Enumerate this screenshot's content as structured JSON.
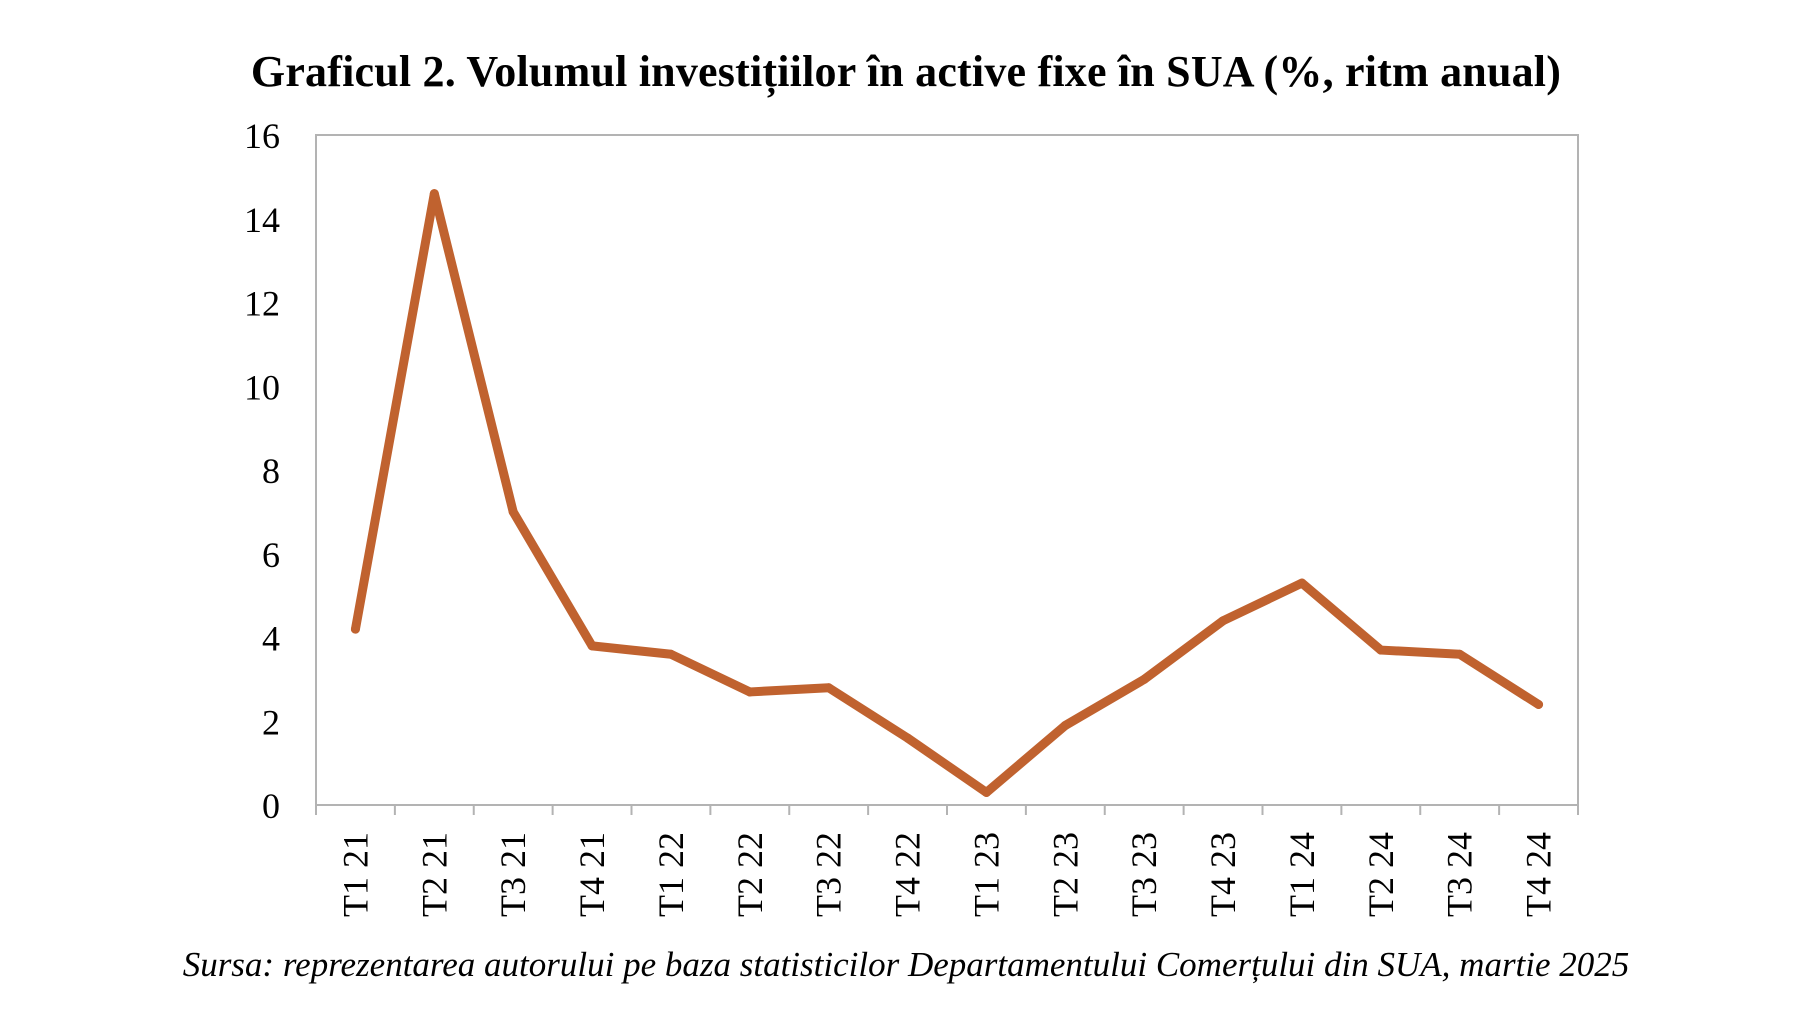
{
  "chart_data": {
    "type": "line",
    "title": "Graficul 2. Volumul investițiilor în active fixe în SUA (%, ritm anual)",
    "xlabel": "",
    "ylabel": "",
    "categories": [
      "T1 21",
      "T2 21",
      "T3 21",
      "T4 21",
      "T1 22",
      "T2 22",
      "T3 22",
      "T4 22",
      "T1 23",
      "T2 23",
      "T3 23",
      "T4 23",
      "T1 24",
      "T2 24",
      "T3 24",
      "T4 24"
    ],
    "series": [
      {
        "values": [
          4.2,
          14.6,
          7.0,
          3.8,
          3.6,
          2.7,
          2.8,
          1.6,
          0.3,
          1.9,
          3.0,
          4.4,
          5.3,
          3.7,
          3.6,
          2.4
        ],
        "color": "#C0622F"
      }
    ],
    "ylim": [
      0,
      16
    ],
    "yticks": [
      "0",
      "2",
      "4",
      "6",
      "8",
      "10",
      "12",
      "14",
      "16"
    ],
    "grid": false,
    "legend": "none"
  },
  "source_note": "Sursa: reprezentarea autorului pe baza statisticilor Departamentului Comerțului din SUA, martie 2025"
}
